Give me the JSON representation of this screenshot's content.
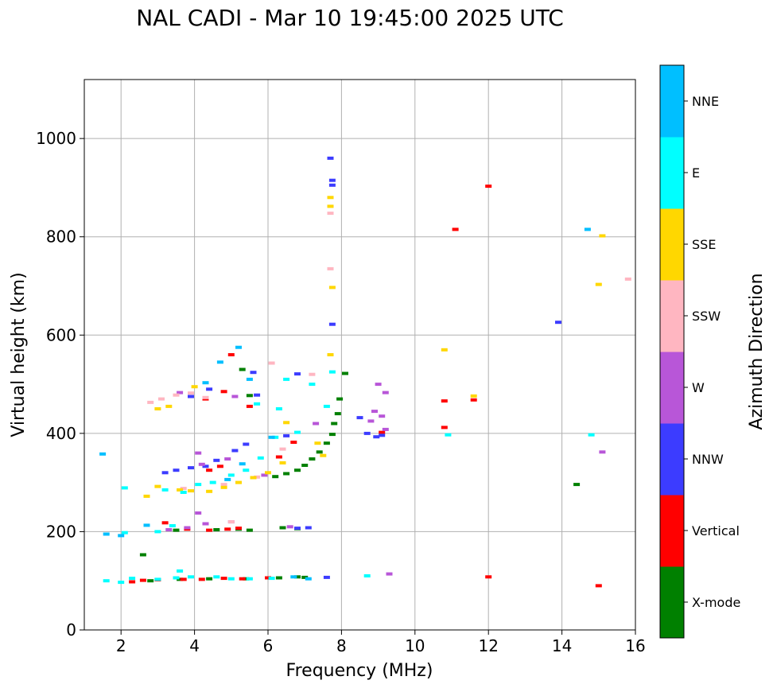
{
  "chart_data": {
    "type": "scatter",
    "title": "NAL CADI - Mar 10 19:45:00 2025 UTC",
    "xlabel": "Frequency (MHz)",
    "ylabel": "Virtual height (km)",
    "xlim": [
      1,
      16
    ],
    "ylim": [
      0,
      1120
    ],
    "xticks": [
      2,
      4,
      6,
      8,
      10,
      12,
      14,
      16
    ],
    "yticks": [
      0,
      200,
      400,
      600,
      800,
      1000
    ],
    "grid": true,
    "colorbar": {
      "label": "Azimuth Direction",
      "categories": [
        {
          "name": "X-mode",
          "color": "#008000"
        },
        {
          "name": "Vertical",
          "color": "#ff0000"
        },
        {
          "name": "NNW",
          "color": "#3c3cff"
        },
        {
          "name": "W",
          "color": "#b856d8"
        },
        {
          "name": "SSW",
          "color": "#ffb6c1"
        },
        {
          "name": "SSE",
          "color": "#ffd700"
        },
        {
          "name": "E",
          "color": "#00ffff"
        },
        {
          "name": "NNE",
          "color": "#00bfff"
        }
      ]
    },
    "series": [
      {
        "name": "X-mode",
        "points": [
          [
            2.8,
            100
          ],
          [
            3.6,
            103
          ],
          [
            4.4,
            104
          ],
          [
            5.4,
            104
          ],
          [
            6.3,
            106
          ],
          [
            6.8,
            108
          ],
          [
            7.0,
            107
          ],
          [
            3.5,
            203
          ],
          [
            4.6,
            204
          ],
          [
            5.2,
            205
          ],
          [
            5.5,
            203
          ],
          [
            6.4,
            208
          ],
          [
            6.8,
            206
          ],
          [
            6.2,
            312
          ],
          [
            6.5,
            318
          ],
          [
            6.8,
            325
          ],
          [
            7.0,
            335
          ],
          [
            7.2,
            348
          ],
          [
            7.4,
            362
          ],
          [
            7.6,
            380
          ],
          [
            7.75,
            398
          ],
          [
            7.8,
            420
          ],
          [
            7.9,
            440
          ],
          [
            7.95,
            470
          ],
          [
            2.6,
            153
          ],
          [
            5.5,
            477
          ],
          [
            5.3,
            530
          ],
          [
            8.1,
            522
          ],
          [
            14.4,
            296
          ]
        ]
      },
      {
        "name": "Vertical",
        "points": [
          [
            2.3,
            98
          ],
          [
            2.6,
            101
          ],
          [
            3.0,
            102
          ],
          [
            3.7,
            103
          ],
          [
            4.2,
            103
          ],
          [
            4.8,
            105
          ],
          [
            5.3,
            104
          ],
          [
            6.0,
            106
          ],
          [
            3.8,
            205
          ],
          [
            4.4,
            203
          ],
          [
            4.9,
            205
          ],
          [
            5.2,
            207
          ],
          [
            4.4,
            325
          ],
          [
            4.7,
            333
          ],
          [
            4.3,
            470
          ],
          [
            4.8,
            485
          ],
          [
            5.0,
            560
          ],
          [
            6.3,
            352
          ],
          [
            6.7,
            382
          ],
          [
            9.1,
            402
          ],
          [
            10.8,
            466
          ],
          [
            10.8,
            412
          ],
          [
            11.1,
            815
          ],
          [
            11.6,
            468
          ],
          [
            12.0,
            903
          ],
          [
            12.0,
            108
          ],
          [
            15.0,
            90
          ],
          [
            3.2,
            218
          ],
          [
            5.5,
            455
          ]
        ]
      },
      {
        "name": "NNW",
        "points": [
          [
            3.2,
            320
          ],
          [
            3.5,
            325
          ],
          [
            3.9,
            330
          ],
          [
            4.3,
            333
          ],
          [
            4.6,
            345
          ],
          [
            5.1,
            365
          ],
          [
            5.4,
            378
          ],
          [
            3.9,
            475
          ],
          [
            4.4,
            490
          ],
          [
            5.6,
            524
          ],
          [
            6.5,
            395
          ],
          [
            6.8,
            207
          ],
          [
            7.1,
            208
          ],
          [
            7.7,
            960
          ],
          [
            7.75,
            915
          ],
          [
            7.75,
            905
          ],
          [
            7.75,
            622
          ],
          [
            8.7,
            400
          ],
          [
            8.95,
            393
          ],
          [
            9.1,
            396
          ],
          [
            13.9,
            626
          ],
          [
            5.7,
            478
          ],
          [
            6.8,
            521
          ],
          [
            7.6,
            107
          ],
          [
            8.5,
            432
          ]
        ]
      },
      {
        "name": "W",
        "points": [
          [
            3.3,
            204
          ],
          [
            3.8,
            208
          ],
          [
            4.3,
            216
          ],
          [
            4.1,
            238
          ],
          [
            5.0,
            220
          ],
          [
            4.2,
            337
          ],
          [
            4.9,
            348
          ],
          [
            5.1,
            475
          ],
          [
            8.8,
            425
          ],
          [
            8.9,
            445
          ],
          [
            9.1,
            435
          ],
          [
            9.2,
            408
          ],
          [
            9.0,
            500
          ],
          [
            9.2,
            483
          ],
          [
            9.3,
            114
          ],
          [
            15.1,
            362
          ],
          [
            3.6,
            483
          ],
          [
            4.1,
            360
          ],
          [
            5.9,
            315
          ],
          [
            7.3,
            420
          ],
          [
            6.6,
            210
          ]
        ]
      },
      {
        "name": "SSW",
        "points": [
          [
            2.8,
            463
          ],
          [
            3.1,
            470
          ],
          [
            3.5,
            478
          ],
          [
            3.9,
            482
          ],
          [
            4.3,
            473
          ],
          [
            5.0,
            220
          ],
          [
            6.1,
            543
          ],
          [
            6.4,
            368
          ],
          [
            7.2,
            520
          ],
          [
            7.7,
            848
          ],
          [
            7.7,
            735
          ],
          [
            3.7,
            288
          ],
          [
            4.8,
            296
          ],
          [
            5.7,
            311
          ],
          [
            15.8,
            714
          ]
        ]
      },
      {
        "name": "SSE",
        "points": [
          [
            3.0,
            450
          ],
          [
            3.3,
            455
          ],
          [
            3.6,
            285
          ],
          [
            3.9,
            283
          ],
          [
            4.4,
            282
          ],
          [
            4.8,
            290
          ],
          [
            5.2,
            300
          ],
          [
            5.6,
            310
          ],
          [
            6.0,
            320
          ],
          [
            6.4,
            340
          ],
          [
            6.5,
            422
          ],
          [
            7.35,
            380
          ],
          [
            7.5,
            355
          ],
          [
            7.7,
            560
          ],
          [
            7.75,
            697
          ],
          [
            7.7,
            880
          ],
          [
            7.7,
            862
          ],
          [
            10.8,
            570
          ],
          [
            11.6,
            476
          ],
          [
            15.0,
            703
          ],
          [
            15.1,
            802
          ],
          [
            2.7,
            272
          ],
          [
            3.0,
            292
          ],
          [
            4.0,
            495
          ]
        ]
      },
      {
        "name": "E",
        "points": [
          [
            1.6,
            100
          ],
          [
            2.0,
            97
          ],
          [
            2.3,
            105
          ],
          [
            3.0,
            103
          ],
          [
            3.5,
            106
          ],
          [
            3.9,
            108
          ],
          [
            4.6,
            108
          ],
          [
            5.0,
            104
          ],
          [
            5.5,
            104
          ],
          [
            6.1,
            105
          ],
          [
            2.1,
            198
          ],
          [
            3.0,
            200
          ],
          [
            3.4,
            212
          ],
          [
            3.6,
            120
          ],
          [
            3.2,
            285
          ],
          [
            3.7,
            280
          ],
          [
            4.1,
            296
          ],
          [
            4.5,
            300
          ],
          [
            5.0,
            315
          ],
          [
            5.4,
            325
          ],
          [
            5.8,
            350
          ],
          [
            6.2,
            392
          ],
          [
            6.8,
            402
          ],
          [
            6.3,
            450
          ],
          [
            7.6,
            455
          ],
          [
            7.75,
            525
          ],
          [
            8.7,
            110
          ],
          [
            10.9,
            397
          ],
          [
            14.8,
            397
          ],
          [
            2.1,
            289
          ],
          [
            5.7,
            460
          ],
          [
            6.5,
            510
          ],
          [
            7.2,
            500
          ]
        ]
      },
      {
        "name": "NNE",
        "points": [
          [
            1.5,
            358
          ],
          [
            1.6,
            195
          ],
          [
            2.0,
            192
          ],
          [
            2.7,
            213
          ],
          [
            4.3,
            503
          ],
          [
            4.7,
            545
          ],
          [
            5.2,
            575
          ],
          [
            5.5,
            510
          ],
          [
            6.7,
            108
          ],
          [
            7.1,
            104
          ],
          [
            14.7,
            815
          ],
          [
            4.9,
            306
          ],
          [
            5.3,
            338
          ],
          [
            6.1,
            392
          ]
        ]
      }
    ]
  }
}
